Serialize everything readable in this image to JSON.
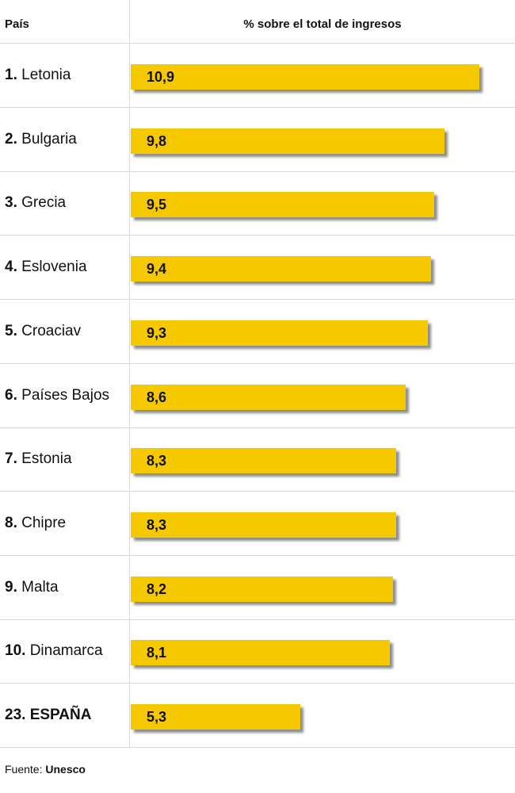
{
  "header": {
    "country_label": "País",
    "value_label": "% sobre el total de ingresos"
  },
  "chart_data": {
    "type": "bar",
    "orientation": "horizontal",
    "xlabel": "% sobre el total de ingresos",
    "ylabel": "País",
    "xlim": [
      0,
      11.2
    ],
    "categories": [
      "1. Letonia",
      "2. Bulgaria",
      "3. Grecia",
      "4. Eslovenia",
      "5. Croaciav",
      "6. Países Bajos",
      "7. Estonia",
      "8. Chipre",
      "9. Malta",
      "10. Dinamarca",
      "23. ESPAÑA"
    ],
    "values": [
      10.9,
      9.8,
      9.5,
      9.4,
      9.3,
      8.6,
      8.3,
      8.3,
      8.2,
      8.1,
      5.3
    ],
    "bar_color": "#f5c800"
  },
  "rows": [
    {
      "rank": "1.",
      "country": "Letonia",
      "value_label": "10,9",
      "value": 10.9,
      "highlight": false
    },
    {
      "rank": "2.",
      "country": "Bulgaria",
      "value_label": "9,8",
      "value": 9.8,
      "highlight": false
    },
    {
      "rank": "3.",
      "country": "Grecia",
      "value_label": "9,5",
      "value": 9.5,
      "highlight": false
    },
    {
      "rank": "4.",
      "country": "Eslovenia",
      "value_label": "9,4",
      "value": 9.4,
      "highlight": false
    },
    {
      "rank": "5.",
      "country": "Croaciav",
      "value_label": "9,3",
      "value": 9.3,
      "highlight": false
    },
    {
      "rank": "6.",
      "country": "Países Bajos",
      "value_label": "8,6",
      "value": 8.6,
      "highlight": false
    },
    {
      "rank": "7.",
      "country": "Estonia",
      "value_label": "8,3",
      "value": 8.3,
      "highlight": false
    },
    {
      "rank": "8.",
      "country": "Chipre",
      "value_label": "8,3",
      "value": 8.3,
      "highlight": false
    },
    {
      "rank": "9.",
      "country": "Malta",
      "value_label": "8,2",
      "value": 8.2,
      "highlight": false
    },
    {
      "rank": "10.",
      "country": "Dinamarca",
      "value_label": "8,1",
      "value": 8.1,
      "highlight": false
    },
    {
      "rank": "23.",
      "country": "ESPAÑA",
      "value_label": "5,3",
      "value": 5.3,
      "highlight": true
    }
  ],
  "source": {
    "prefix": "Fuente:",
    "name": "Unesco"
  }
}
